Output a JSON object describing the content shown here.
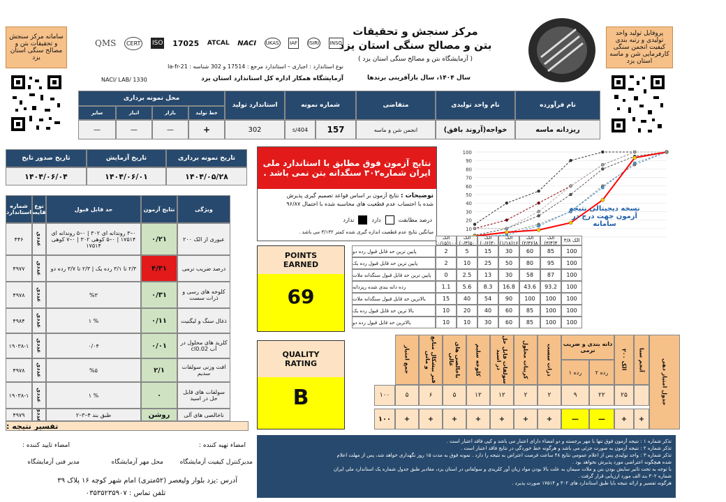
{
  "header": {
    "title1": "مرکز سنجش و تحقیقات",
    "title2": "بتن و مصالح سنگی استان یزد",
    "title3": "( آزمایشگاه بتن و مصالح سنگی استان یزد )",
    "year": "سال ۱۴۰۴، سال بازآفرینی برندها",
    "standard_line": "نوع استاندارد : اجباری  –  استاندارد مرجع : 17514  و  302  شناسه : la-fr-21",
    "nac": "NACI/ LAB/ 1330",
    "lab_line": "آزمایشگاه همکار اداره کل استاندارد استان یزد"
  },
  "left_box": "سامانه مرکز سنجش و تحقیقات بتن و مصالح سنگی استان یزد",
  "right_box": "پروفایل تولید واحد تولیدی و رتبه بندی کیفیت انجمن سنگی کارفرمایی شن و ماسه استان یزد",
  "logos": [
    "QMS",
    "CERT",
    "ISO",
    "17025",
    "ATCAL",
    "NACI",
    "UKAS",
    "IAF",
    "ISIRI",
    "INSO"
  ],
  "top_table": {
    "headers": [
      "نام فرآورده",
      "نام واحد تولیدی",
      "متقاضی",
      "شماره نمونه",
      "استاندارد تولید",
      "محل نمونه برداری"
    ],
    "sub_headers": [
      "خط تولید",
      "بازار",
      "انبار",
      "سایر"
    ],
    "row": {
      "product": "ریزدانه ماسه",
      "producer": "خواجه(آروند بافق)",
      "applicant": "انجمن شن و ماسه",
      "sample_no": "157",
      "sample_code": "s/404",
      "standard": "302",
      "line": "+",
      "market": "—",
      "store": "—",
      "other": "—"
    }
  },
  "dates": {
    "headers": [
      "تاریخ نمونه برداری",
      "تاریخ آزمایش",
      "تاریخ صدور تایخ"
    ],
    "values": [
      "۱۴۰۴/۰۵/۲۸",
      "۱۴۰۴/۰۶/۰۱",
      "۱۴۰۴/۰۶/۰۴"
    ]
  },
  "result_box": {
    "line1": "نتایج آزمون فوق مطابق با استاندارد ملی",
    "line2": "ایران شماره۳۰۲ سنگدانه بتن نمی باشد .",
    "explain_title": "توضیحات :",
    "explain1": "نتایج آزمون بر اساس قواعد تصمیم گیری پذیرش",
    "explain2": "شده با احتساب عدم قطعیت های محاسبه شده با احتمال ۹۶/۸۷",
    "match_label": "درصد مطابقت",
    "has": "دارد",
    "hasnot": "ندارد",
    "note": "میانگین نتایج عدم قطعیت اندازه گیری شده کمتر ۳/۱۳۲ می باشد ."
  },
  "chart_note": {
    "line1": "نسخه دیجیتالی نتیجه",
    "line2": "آزمون جهت درج در سامانه"
  },
  "chart_data": {
    "type": "line",
    "categories": [
      "الک ۳/۸",
      "الک ۴",
      "الک ۸",
      "الک ۱۶",
      "الک ۳۰",
      "الک ۵۰",
      "الک ۱۰۰"
    ],
    "ylim": [
      0,
      100
    ],
    "series": [
      {
        "name": "پایین ترین حد قابل قبول رده دو",
        "values": [
          100,
          85,
          60,
          30,
          15,
          5,
          2
        ],
        "color": "#888888"
      },
      {
        "name": "پایین ترین حد قابل قبول رده یک",
        "values": [
          100,
          95,
          80,
          50,
          25,
          10,
          2
        ],
        "color": "#555555"
      },
      {
        "name": "پایین ترین حد قابل قبول سنگدانه ملات",
        "values": [
          100,
          87,
          58,
          30,
          13,
          2.5,
          0
        ],
        "color": "#4aa3df"
      },
      {
        "name": "رده دانه بندی شده ریزدانه",
        "values": [
          100,
          93.2,
          43.6,
          16.8,
          8.3,
          5.6,
          1.1
        ],
        "color": "#ff0000"
      },
      {
        "name": "بالاترین حد قابل قبول سنگدانه ملات",
        "values": [
          100,
          100,
          100,
          90,
          54,
          40,
          15
        ],
        "color": "#333333"
      },
      {
        "name": "بالا ترین حد قابل قبول رده یک",
        "values": [
          100,
          100,
          85,
          60,
          40,
          20,
          10
        ],
        "color": "#8b0000"
      },
      {
        "name": "بالاترین حد قابل قبول رده دو",
        "values": [
          100,
          100,
          85,
          60,
          30,
          10,
          10
        ],
        "color": "#aaaaaa"
      }
    ]
  },
  "grading_table": {
    "headers": [
      "الک ۳/۸",
      "الک ۴(۳/۴)",
      "الک ۸(۲/۳۶)",
      "الک ۱۶(۱/۱۸)",
      "الک ۳۰(۰/۶)",
      "الک ۵۰(۰/۳)",
      "الک ۱۰۰(۰/۱۵)",
      ""
    ],
    "rows": [
      {
        "label": "پایین ترین حد قابل قبول رده دو",
        "vals": [
          "100",
          "85",
          "60",
          "30",
          "15",
          "5",
          "2"
        ]
      },
      {
        "label": "پایین ترین حد قابل قبول رده یک",
        "vals": [
          "100",
          "95",
          "80",
          "50",
          "25",
          "10",
          "2"
        ]
      },
      {
        "label": "پایین ترین حد قابل قبول سنگدانه ملات",
        "vals": [
          "100",
          "87",
          "58",
          "30",
          "13",
          "2.5",
          "0"
        ]
      },
      {
        "label": "رده دانه بندی شده ریزدانه",
        "vals": [
          "100",
          "93.2",
          "43.6",
          "16.8",
          "8.3",
          "5.6",
          "1.1"
        ]
      },
      {
        "label": "بالاترین حد قابل قبول سنگدانه ملات",
        "vals": [
          "100",
          "100",
          "100",
          "90",
          "54",
          "40",
          "15"
        ]
      },
      {
        "label": "بالا ترین حد قابل قبول رده یک",
        "vals": [
          "100",
          "100",
          "85",
          "60",
          "40",
          "20",
          "10"
        ]
      },
      {
        "label": "بالاترین حد قابل قبول رده دو",
        "vals": [
          "100",
          "100",
          "85",
          "60",
          "30",
          "10",
          "10"
        ]
      }
    ]
  },
  "points": {
    "label": "POINTS EARNED",
    "value": "69"
  },
  "quality": {
    "label": "QUALITY RATING",
    "value": "B"
  },
  "score_table": {
    "headers": [
      "جدول امتیاز دهی",
      "آنجم سنا",
      "الک ۲۰۰",
      "دانه بندی و ضریب نرمی",
      "ذرات سست",
      "کربنات محلول",
      "سولفات قابل حل در اسید",
      "کلوخه سلیم",
      "ناخالصی های عالی",
      "قیر بیشکال منابع و ماتی",
      "جمع امتیاز"
    ],
    "grading_sub": [
      "رده ۲",
      "رده ۱"
    ],
    "row1": [
      "امتیاز",
      "",
      "۲۵",
      "۲۲",
      "۹",
      "۲",
      "۲",
      "۱۲",
      "۱۲",
      "۵",
      "۶",
      "۵",
      "۱۰۰"
    ],
    "row2": [
      "+",
      "+",
      "+",
      "—",
      "—",
      "+",
      "+",
      "+",
      "+",
      "+",
      "+",
      "+",
      "۱۰۰"
    ]
  },
  "left_table": {
    "headers": [
      "شماره استاندارد",
      "نوع مقایسه",
      "حد قابل قبول",
      "نتایج آزمون",
      "ویژگی"
    ],
    "rows": [
      {
        "std": "۴۴۶",
        "type": "عددی",
        "limit": "۰–۳ روندانه ای ۳۰۲ | ۰–۵ روندانه ای ۱۷۵۱۴ | ۰–۵ کوهی ۳۰۲ | ۰–۷ کوهی ۱۷۵۱۴",
        "result": "۰/۲۱",
        "prop": "عبوری از الک ۲۰۰",
        "highlight": "green"
      },
      {
        "std": "۴۹۷۷",
        "type": "عددی",
        "limit": "۲/۳ تا ۳/۱ رده یک | ۲/۳ تا ۳/۷ رده دو",
        "result": "۴/۳۱",
        "prop": "درصد ضریب نرمی",
        "highlight": "red"
      },
      {
        "std": "۴۹۷۸",
        "type": "عددی",
        "limit": "%۳",
        "result": "۰/۳۱",
        "prop": "کلوخه های رسی و ذرات سست",
        "highlight": "green"
      },
      {
        "std": "۴۹۸۴",
        "type": "عددی",
        "limit": "% ۱",
        "result": "۰/۱۱",
        "prop": "ذغال سنگ و لیگنیت",
        "highlight": "green"
      },
      {
        "std": "۱۹۰۳۸-۱",
        "type": "عددی",
        "limit": "۰/۰۴",
        "result": "۰/۰۱",
        "prop": "کلرید های محلول در آب cl0.02",
        "highlight": "green"
      },
      {
        "std": "۴۹۷۸",
        "type": "عددی",
        "limit": "%۵",
        "result": "۲/۱",
        "prop": "افت وزنی سولفات سدیم",
        "highlight": "green"
      },
      {
        "std": "۱۹۰۳۸-۱",
        "type": "عددی",
        "limit": "% ۱",
        "result": "۰",
        "prop": "سولفات های قابل حل در اسید",
        "highlight": "green"
      },
      {
        "std": "۴۹۷۹",
        "type": "عددی",
        "limit": "طبق بند ۴–۳–۲",
        "result": "روشن",
        "prop": "ناخالصی های آلی",
        "highlight": "green"
      }
    ],
    "interpret": "تفسیر نتیجه :"
  },
  "signatures": {
    "prepared": "امضاء تهیه کننده :",
    "approved": "امضاء تایید کننده :",
    "quality": "مدیرکنترل کیفیت آزمایشگاه",
    "seal": "محل مهر آزمایشگاه",
    "tech": "مدیر فنی آزمایشگاه"
  },
  "address": "آدرس :یزد بلوار ولیعصر (۵۲متری) امام شهر کوچه ۱۶ پلاک ۳۹",
  "phone": "تلفن تماس : ۰۳۵۳۵۲۳۵۹۰۷",
  "notes": {
    "n1": "تذکر شماره ۱ : نتیجه آزمون فوق تنها با مهر برجسته و دو امضاء دارای اعتبار می باشد و کپی فاقد اعتبار است .",
    "n2": "تذکر شماره ۲ : نتیجه آزمون به صورت جزئی می باشد و هرگونه خط خوردگی در نتایج فاقد اعتبار است .",
    "n3": "تذکر شماره ۳ : واحد تولیدی پس از اعلام عمومی نتایج ۴۸ ساعت فرصت اعتراض به نتیجه را دارد . نمونه فوق به مدت ۱۵ روز نگهداری خواهد شد، پس از مهلت اعلام",
    "n4": "شده هیچگونه اعتراضی مورد پذیرش نخواهد بود .",
    "n5": "با توجه به تحت تاثیر سایش بودن بتن و ملات سیمان به علت بالا بودن مواد زیان آور کلریدی و سولفاتی در استان یزد، مقادیر طبق جدول شماره یک استاندارد ملی ایران",
    "n6": "شماره ۳۰۲ بند الف مورد ارزیابی قرار گرفت .",
    "n7": "هرگونه تفسیر و ارائه نتیجه بایا طبق استاندارد های ۳۰۲ و ۱۷۵۱۴ صورت پذیرد ."
  }
}
